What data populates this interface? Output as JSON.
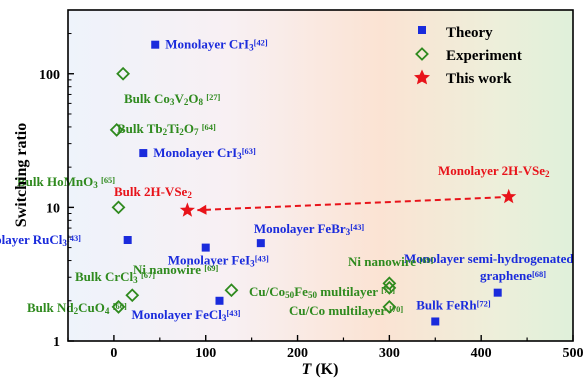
{
  "chart_data": {
    "type": "scatter",
    "xlabel_italic": "T",
    "xlabel_rest": " (K)",
    "ylabel": "Switching ratio",
    "x_log": false,
    "y_log": true,
    "xlim": [
      -50,
      500
    ],
    "ylim": [
      1,
      300
    ],
    "xticks": [
      0,
      100,
      200,
      300,
      400,
      500
    ],
    "yticks": [
      1,
      10,
      100
    ],
    "legend_position": "top-right",
    "legend": [
      {
        "key": "theory",
        "label": "Theory"
      },
      {
        "key": "experiment",
        "label": "Experiment"
      },
      {
        "key": "thiswork",
        "label": "This work"
      }
    ],
    "colors": {
      "theory": "#1a2bdc",
      "experiment": "#2f8a1e",
      "thiswork": "#e8131a"
    },
    "series": [
      {
        "key": "theory",
        "name": "Theory",
        "points": [
          {
            "x": 45,
            "y": 165,
            "base": "Monolayer CrI",
            "sub": "3",
            "ref": "[42]"
          },
          {
            "x": 32,
            "y": 25.5,
            "base": "Monolayer CrI",
            "sub": "3",
            "ref": "[63]"
          },
          {
            "x": 15,
            "y": 5.7,
            "base": "Monolayer RuCl",
            "sub": "3",
            "ref": "[43]"
          },
          {
            "x": 100,
            "y": 5.0,
            "base": "Monolayer FeI",
            "sub": "3",
            "ref": "[43]"
          },
          {
            "x": 160,
            "y": 5.4,
            "base": "Monolayer FeBr",
            "sub": "3",
            "ref": "[43]"
          },
          {
            "x": 115,
            "y": 2.0,
            "base": "Monolayer FeCl",
            "sub": "3",
            "ref": "[43]"
          },
          {
            "x": 350,
            "y": 1.4,
            "base": "Bulk FeRh",
            "sub": "",
            "ref": "[72]"
          },
          {
            "x": 418,
            "y": 2.3,
            "base": "Monolayer semi-hydrogenated graphene",
            "sub": "",
            "ref": "[68]"
          }
        ]
      },
      {
        "key": "experiment",
        "name": "Experiment",
        "points": [
          {
            "x": 10,
            "y": 100,
            "label": "Bulk Co3V2O8 [27]"
          },
          {
            "x": 3,
            "y": 38,
            "label": "Bulk Tb2Ti2O7 [64]"
          },
          {
            "x": 5,
            "y": 10,
            "label": "Bulk HoMnO3 [65]"
          },
          {
            "x": 20,
            "y": 2.2,
            "label": "Bulk CrCl3 [67]"
          },
          {
            "x": 5,
            "y": 1.8,
            "label": "Bulk Nd2CuO4 [66]"
          },
          {
            "x": 128,
            "y": 2.4,
            "label": "Ni nanowire [69]"
          },
          {
            "x": 300,
            "y": 2.7,
            "label": "Ni nanowire [69]"
          },
          {
            "x": 300,
            "y": 2.5,
            "label": "Cu/Co50Fe50 multilayer [71]"
          },
          {
            "x": 300,
            "y": 1.8,
            "label": "Cu/Co multilayer [70]"
          }
        ]
      },
      {
        "key": "thiswork",
        "name": "This work",
        "points": [
          {
            "x": 80,
            "y": 9.5,
            "label": "Bulk 2H-VSe2"
          },
          {
            "x": 430,
            "y": 12,
            "label": "Monolayer 2H-VSe2"
          }
        ]
      }
    ]
  }
}
